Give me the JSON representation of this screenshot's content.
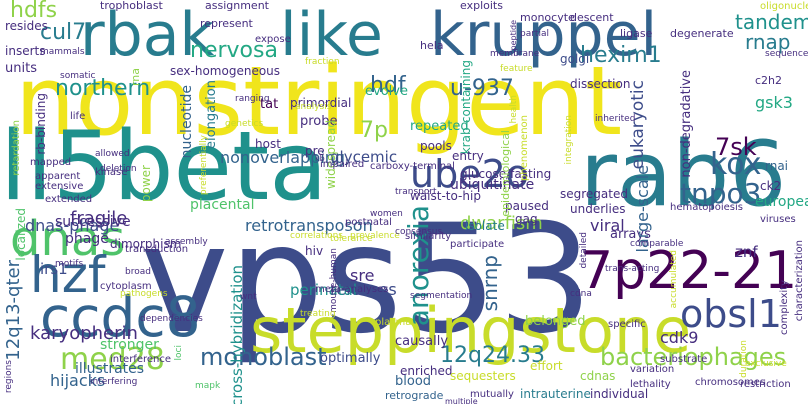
{
  "palette": {
    "c0": "#f0e51c",
    "c1": "#c8dc2a",
    "c2": "#8fd24a",
    "c3": "#4fc36a",
    "c4": "#23a884",
    "c5": "#1f918c",
    "c6": "#287c8e",
    "c7": "#33638d",
    "c8": "#3d4c8a",
    "c9": "#462e7f",
    "c10": "#440154"
  },
  "words": [
    {
      "text": "vps53",
      "color": "c8"
    },
    {
      "text": "nonstringent",
      "color": "c0"
    },
    {
      "text": "ll5beta",
      "color": "c5"
    },
    {
      "text": "rab6",
      "color": "c6"
    },
    {
      "text": "steppingstone",
      "color": "c1"
    },
    {
      "text": "rbak",
      "color": "c6"
    },
    {
      "text": "like",
      "color": "c6"
    },
    {
      "text": "kruppel",
      "color": "c7"
    },
    {
      "text": "ccdc8",
      "color": "c7"
    },
    {
      "text": "7p22-21",
      "color": "c10"
    },
    {
      "text": "dnas",
      "color": "c3"
    },
    {
      "text": "ube2o",
      "color": "c8"
    },
    {
      "text": "hzf",
      "color": "c7"
    },
    {
      "text": "obsl1",
      "color": "c8"
    },
    {
      "text": "med28",
      "color": "c2"
    },
    {
      "text": "monoblast",
      "color": "c7"
    },
    {
      "text": "bacteriophages",
      "color": "c2"
    },
    {
      "text": "12q24.33",
      "color": "c6"
    },
    {
      "text": "kox",
      "color": "c7"
    },
    {
      "text": "tnpo3",
      "color": "c7"
    },
    {
      "text": "anorexia",
      "color": "c5"
    },
    {
      "text": "7sk",
      "color": "c10"
    },
    {
      "text": "hexim1",
      "color": "c6"
    },
    {
      "text": "nervosa",
      "color": "c4"
    },
    {
      "text": "northern",
      "color": "c5"
    },
    {
      "text": "cul7",
      "color": "c6"
    },
    {
      "text": "hdfs",
      "color": "c2"
    },
    {
      "text": "tandem",
      "color": "c5"
    },
    {
      "text": "rnap",
      "color": "c6"
    },
    {
      "text": "u-937",
      "color": "c7"
    },
    {
      "text": "hdf",
      "color": "c7"
    },
    {
      "text": "7p",
      "color": "c2"
    },
    {
      "text": "12q13-qter",
      "color": "c7"
    },
    {
      "text": "karyopherin",
      "color": "c9"
    },
    {
      "text": "cross-hybridization",
      "color": "c5"
    },
    {
      "text": "snrnp",
      "color": "c7"
    },
    {
      "text": "cdk9",
      "color": "c9"
    },
    {
      "text": "dwarfism",
      "color": "c2"
    },
    {
      "text": "fragile",
      "color": "c9"
    },
    {
      "text": "retrotransposon",
      "color": "c7"
    },
    {
      "text": "nonoverlapping",
      "color": "c7"
    },
    {
      "text": "glycemic",
      "color": "c8"
    },
    {
      "text": "dnas-phage",
      "color": "c8"
    },
    {
      "text": "hijacks",
      "color": "c7"
    },
    {
      "text": "irs1",
      "color": "c8"
    },
    {
      "text": "sre",
      "color": "c9"
    },
    {
      "text": "releases",
      "color": "c8"
    },
    {
      "text": "perinatal",
      "color": "c5"
    },
    {
      "text": "viral",
      "color": "c9"
    },
    {
      "text": "arrays",
      "color": "c9"
    },
    {
      "text": "znf",
      "color": "c9"
    },
    {
      "text": "elongation",
      "color": "c6"
    },
    {
      "text": "nucleotide",
      "color": "c7"
    },
    {
      "text": "large-scale",
      "color": "c7"
    },
    {
      "text": "eukaryotic",
      "color": "c8"
    },
    {
      "text": "non-degradative",
      "color": "c9"
    },
    {
      "text": "gsk3",
      "color": "c4"
    },
    {
      "text": "rna",
      "color": "c2"
    },
    {
      "text": "rb-binding",
      "color": "c9"
    },
    {
      "text": "retardation",
      "color": "c2"
    },
    {
      "text": "stronger",
      "color": "c3"
    },
    {
      "text": "illustrates",
      "color": "c7"
    },
    {
      "text": "blood",
      "color": "c7"
    },
    {
      "text": "retrograde",
      "color": "c7"
    },
    {
      "text": "mutually",
      "color": "c9"
    },
    {
      "text": "intrauterine",
      "color": "c6"
    },
    {
      "text": "individual",
      "color": "c9"
    },
    {
      "text": "enriched",
      "color": "c9"
    },
    {
      "text": "sequesters",
      "color": "c1"
    },
    {
      "text": "cdnas",
      "color": "c2"
    },
    {
      "text": "optimally",
      "color": "c8"
    },
    {
      "text": "causally",
      "color": "c9"
    },
    {
      "text": "belonged",
      "color": "c2"
    },
    {
      "text": "effort",
      "color": "c1"
    },
    {
      "text": "paused",
      "color": "c9"
    },
    {
      "text": "gag",
      "color": "c9"
    },
    {
      "text": "underlies",
      "color": "c9"
    },
    {
      "text": "ubiquitinate",
      "color": "c9"
    },
    {
      "text": "glucose/fasting",
      "color": "c9"
    },
    {
      "text": "segregated",
      "color": "c9"
    },
    {
      "text": "ck2",
      "color": "c9"
    },
    {
      "text": "european",
      "color": "c4"
    },
    {
      "text": "rnai",
      "color": "c7"
    },
    {
      "text": "pools",
      "color": "c9"
    },
    {
      "text": "waist-to-hip",
      "color": "c9"
    },
    {
      "text": "repeated",
      "color": "c4"
    },
    {
      "text": "probe",
      "color": "c9"
    },
    {
      "text": "host",
      "color": "c9"
    },
    {
      "text": "tat",
      "color": "c10"
    },
    {
      "text": "pre",
      "color": "c9"
    },
    {
      "text": "evolve",
      "color": "c4"
    },
    {
      "text": "primordial",
      "color": "c9"
    },
    {
      "text": "dissection",
      "color": "c9"
    },
    {
      "text": "sex-homogeneous",
      "color": "c9"
    },
    {
      "text": "krab-containing",
      "color": "c4"
    },
    {
      "text": "golgi",
      "color": "c8"
    },
    {
      "text": "dimorphism",
      "color": "c9"
    },
    {
      "text": "placental",
      "color": "c3"
    },
    {
      "text": "successive",
      "color": "c9"
    },
    {
      "text": "phage",
      "color": "c9"
    },
    {
      "text": "localized",
      "color": "c3"
    },
    {
      "text": "isolate",
      "color": "c6"
    },
    {
      "text": "entry",
      "color": "c9"
    },
    {
      "text": "hiv",
      "color": "c9"
    },
    {
      "text": "units",
      "color": "c9"
    },
    {
      "text": "inserts",
      "color": "c9"
    },
    {
      "text": "resides",
      "color": "c9"
    },
    {
      "text": "trophoblast",
      "color": "c9"
    },
    {
      "text": "assignment",
      "color": "c9"
    },
    {
      "text": "exploits",
      "color": "c9"
    },
    {
      "text": "monocyte",
      "color": "c9"
    },
    {
      "text": "descent",
      "color": "c9"
    },
    {
      "text": "ligase",
      "color": "c9"
    },
    {
      "text": "degenerate",
      "color": "c9"
    },
    {
      "text": "represent",
      "color": "c9"
    },
    {
      "text": "expose",
      "color": "c9"
    },
    {
      "text": "hela",
      "color": "c9"
    },
    {
      "text": "c2h2",
      "color": "c9"
    },
    {
      "text": "widespread",
      "color": "c2"
    },
    {
      "text": "epidemiological",
      "color": "c2"
    },
    {
      "text": "power",
      "color": "c2"
    },
    {
      "text": "ranging",
      "color": "c9"
    },
    {
      "text": "impaired",
      "color": "c9"
    },
    {
      "text": "carboxy-terminal",
      "color": "c9"
    },
    {
      "text": "kinase",
      "color": "c9"
    },
    {
      "text": "transduction",
      "color": "c9"
    },
    {
      "text": "assembly",
      "color": "c9"
    },
    {
      "text": "cytoplasm",
      "color": "c9"
    },
    {
      "text": "interference",
      "color": "c9"
    },
    {
      "text": "dependencies",
      "color": "c9"
    },
    {
      "text": "mouse-human",
      "color": "c9"
    },
    {
      "text": "meta-analyses",
      "color": "c9"
    },
    {
      "text": "postnatal",
      "color": "c9"
    },
    {
      "text": "women",
      "color": "c9"
    },
    {
      "text": "chromosomes",
      "color": "c9"
    },
    {
      "text": "restriction",
      "color": "c9"
    },
    {
      "text": "characterization",
      "color": "c9"
    },
    {
      "text": "complexity",
      "color": "c9"
    },
    {
      "text": "substrate",
      "color": "c9"
    },
    {
      "text": "lethality",
      "color": "c9"
    },
    {
      "text": "variation",
      "color": "c9"
    },
    {
      "text": "plasma",
      "color": "c1"
    },
    {
      "text": "specific",
      "color": "c9"
    },
    {
      "text": "viruses",
      "color": "c9"
    },
    {
      "text": "hematopoiesis",
      "color": "c9"
    },
    {
      "text": "similarity",
      "color": "c9"
    },
    {
      "text": "participate",
      "color": "c9"
    },
    {
      "text": "prevalence",
      "color": "c1"
    },
    {
      "text": "correlations",
      "color": "c1"
    },
    {
      "text": "genetics",
      "color": "c1"
    },
    {
      "text": "analysis",
      "color": "c1"
    },
    {
      "text": "fraction",
      "color": "c1"
    },
    {
      "text": "mammals",
      "color": "c9"
    },
    {
      "text": "somatic",
      "color": "c9"
    },
    {
      "text": "life",
      "color": "c9"
    },
    {
      "text": "mapped",
      "color": "c9"
    },
    {
      "text": "apparent",
      "color": "c9"
    },
    {
      "text": "extensive",
      "color": "c9"
    },
    {
      "text": "extended",
      "color": "c9"
    },
    {
      "text": "allowed",
      "color": "c9"
    },
    {
      "text": "deletion",
      "color": "c9"
    },
    {
      "text": "regions",
      "color": "c9"
    },
    {
      "text": "interfering",
      "color": "c9"
    },
    {
      "text": "multiple",
      "color": "c9"
    },
    {
      "text": "oligonucleotide",
      "color": "c1"
    },
    {
      "text": "sequence",
      "color": "c9"
    },
    {
      "text": "inherited",
      "color": "c9"
    },
    {
      "text": "integration",
      "color": "c1"
    },
    {
      "text": "phenomenon",
      "color": "c1"
    },
    {
      "text": "partial",
      "color": "c9"
    },
    {
      "text": "peptide",
      "color": "c9"
    },
    {
      "text": "membrane",
      "color": "c9"
    },
    {
      "text": "feature",
      "color": "c1"
    },
    {
      "text": "health",
      "color": "c1"
    },
    {
      "text": "kb",
      "color": "c9"
    },
    {
      "text": "tolerance",
      "color": "c1"
    },
    {
      "text": "segmentation",
      "color": "c9"
    },
    {
      "text": "treating",
      "color": "c1"
    },
    {
      "text": "mapk",
      "color": "c3"
    },
    {
      "text": "loci",
      "color": "c3"
    },
    {
      "text": "broad",
      "color": "c9"
    },
    {
      "text": "wnt",
      "color": "c9"
    },
    {
      "text": "pathogens",
      "color": "c1"
    },
    {
      "text": "motifs",
      "color": "c9"
    },
    {
      "text": "trans-acting",
      "color": "c9"
    },
    {
      "text": "cdna",
      "color": "c9"
    },
    {
      "text": "comparable",
      "color": "c9"
    },
    {
      "text": "detailed",
      "color": "c9"
    },
    {
      "text": "exclusive",
      "color": "c1"
    },
    {
      "text": "duration",
      "color": "c1"
    },
    {
      "text": "consensus",
      "color": "c9"
    },
    {
      "text": "transport",
      "color": "c9"
    },
    {
      "text": "preferentially",
      "color": "c1"
    },
    {
      "text": "accumulated",
      "color": "c1"
    }
  ]
}
